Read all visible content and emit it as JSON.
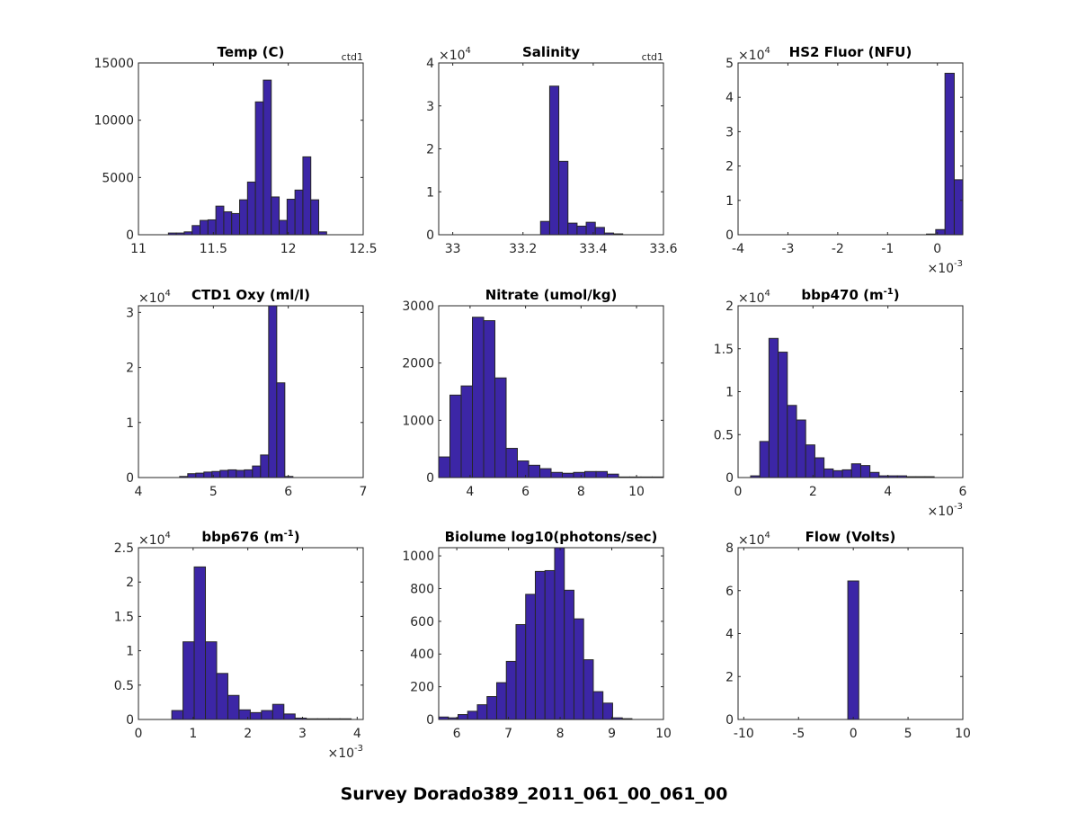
{
  "figure_title": "Survey Dorado389_2011_061_00_061_00",
  "colors": {
    "bar": "#3c26a6",
    "edge": "#262626",
    "axis": "#262626"
  },
  "chart_data": [
    {
      "type": "bar",
      "title": "Temp (C)",
      "corner_label": "ctd1",
      "xlim": [
        11,
        12.5
      ],
      "ylim": [
        0,
        15000
      ],
      "xticks": [
        11,
        11.5,
        12,
        12.5
      ],
      "xtick_labels": [
        "11",
        "11.5",
        "12",
        "12.5"
      ],
      "yticks": [
        0,
        5000,
        10000,
        15000
      ],
      "ytick_labels": [
        "0",
        "5000",
        "10000",
        "15000"
      ],
      "y_multiplier": "",
      "x_multiplier": "",
      "bin_start": 11.2,
      "bin_width": 0.0528,
      "values": [
        150,
        150,
        250,
        800,
        1250,
        1300,
        2500,
        2000,
        1850,
        3050,
        4600,
        11600,
        13500,
        3300,
        1250,
        3100,
        3900,
        6800,
        3050,
        250
      ]
    },
    {
      "type": "bar",
      "title": "Salinity",
      "corner_label": "ctd1",
      "xlim": [
        32.96,
        33.6
      ],
      "ylim": [
        0,
        4
      ],
      "xticks": [
        33,
        33.2,
        33.4,
        33.6
      ],
      "xtick_labels": [
        "33",
        "33.2",
        "33.4",
        "33.6"
      ],
      "yticks": [
        0,
        1,
        2,
        3,
        4
      ],
      "ytick_labels": [
        "0",
        "1",
        "2",
        "3",
        "4"
      ],
      "y_multiplier": "×10",
      "y_multiplier_exp": "4",
      "x_multiplier": "",
      "bin_start": 33.25,
      "bin_width": 0.026,
      "values": [
        0.31,
        3.46,
        1.71,
        0.27,
        0.2,
        0.29,
        0.17,
        0.04,
        0.02
      ]
    },
    {
      "type": "bar",
      "title": "HS2 Fluor (NFU)",
      "corner_label": "",
      "xlim": [
        -4,
        0.51
      ],
      "ylim": [
        0,
        5
      ],
      "xticks": [
        -4,
        -3,
        -2,
        -1,
        0
      ],
      "xtick_labels": [
        "-4",
        "-3",
        "-2",
        "-1",
        "0"
      ],
      "yticks": [
        0,
        1,
        2,
        3,
        4,
        5
      ],
      "ytick_labels": [
        "0",
        "1",
        "2",
        "3",
        "4",
        "5"
      ],
      "y_multiplier": "×10",
      "y_multiplier_exp": "4",
      "x_multiplier": "×10",
      "x_multiplier_exp": "-3",
      "bin_start": -0.22,
      "bin_width": 0.186,
      "values": [
        0.02,
        0.15,
        4.7,
        1.6
      ]
    },
    {
      "type": "bar",
      "title": "CTD1 Oxy (ml/l)",
      "corner_label": "",
      "xlim": [
        4,
        7
      ],
      "ylim": [
        0,
        3.12
      ],
      "xticks": [
        4,
        5,
        6,
        7
      ],
      "xtick_labels": [
        "4",
        "5",
        "6",
        "7"
      ],
      "yticks": [
        0,
        1,
        2,
        3
      ],
      "ytick_labels": [
        "0",
        "1",
        "2",
        "3"
      ],
      "y_multiplier": "×10",
      "y_multiplier_exp": "4",
      "x_multiplier": "",
      "bin_start": 4.55,
      "bin_width": 0.108,
      "values": [
        0.02,
        0.07,
        0.08,
        0.1,
        0.11,
        0.13,
        0.14,
        0.13,
        0.14,
        0.21,
        0.41,
        3.12,
        1.72,
        0.02
      ]
    },
    {
      "type": "bar",
      "title": "Nitrate (umol/kg)",
      "corner_label": "",
      "xlim": [
        2.87,
        10.97
      ],
      "ylim": [
        0,
        3000
      ],
      "xticks": [
        4,
        6,
        8,
        10
      ],
      "xtick_labels": [
        "4",
        "6",
        "8",
        "10"
      ],
      "yticks": [
        0,
        1000,
        2000,
        3000
      ],
      "ytick_labels": [
        "0",
        "1000",
        "2000",
        "3000"
      ],
      "y_multiplier": "",
      "x_multiplier": "",
      "bin_start": 2.87,
      "bin_width": 0.405,
      "values": [
        360,
        1440,
        1600,
        2800,
        2740,
        1740,
        510,
        290,
        215,
        155,
        90,
        75,
        90,
        105,
        105,
        60,
        10,
        10,
        10,
        10
      ]
    },
    {
      "type": "bar",
      "title": "bbp470 (m",
      "title_sup": "-1",
      "title_end": ")",
      "corner_label": "",
      "xlim": [
        0,
        6
      ],
      "ylim": [
        0,
        2
      ],
      "xticks": [
        0,
        2,
        4,
        6
      ],
      "xtick_labels": [
        "0",
        "2",
        "4",
        "6"
      ],
      "yticks": [
        0,
        0.5,
        1,
        1.5,
        2
      ],
      "ytick_labels": [
        "0",
        "0.5",
        "1",
        "1.5",
        "2"
      ],
      "y_multiplier": "×10",
      "y_multiplier_exp": "4",
      "x_multiplier": "×10",
      "x_multiplier_exp": "-3",
      "bin_start": 0.335,
      "bin_width": 0.245,
      "values": [
        0.02,
        0.42,
        1.62,
        1.46,
        0.84,
        0.67,
        0.38,
        0.23,
        0.1,
        0.08,
        0.09,
        0.16,
        0.14,
        0.06,
        0.02,
        0.02,
        0.02,
        0.01,
        0.01,
        0.01
      ]
    },
    {
      "type": "bar",
      "title": "bbp676 (m",
      "title_sup": "-1",
      "title_end": ")",
      "corner_label": "",
      "xlim": [
        0,
        4.11
      ],
      "ylim": [
        0,
        2.5
      ],
      "xticks": [
        0,
        1,
        2,
        3,
        4
      ],
      "xtick_labels": [
        "0",
        "1",
        "2",
        "3",
        "4"
      ],
      "yticks": [
        0,
        0.5,
        1,
        1.5,
        2,
        2.5
      ],
      "ytick_labels": [
        "0",
        "0.5",
        "1",
        "1.5",
        "2",
        "2.5"
      ],
      "y_multiplier": "×10",
      "y_multiplier_exp": "4",
      "x_multiplier": "×10",
      "x_multiplier_exp": "-3",
      "bin_start": 0.61,
      "bin_width": 0.205,
      "values": [
        0.13,
        1.13,
        2.22,
        1.13,
        0.67,
        0.35,
        0.14,
        0.1,
        0.13,
        0.22,
        0.08,
        0.02,
        0.01,
        0.01,
        0.01,
        0.01
      ]
    },
    {
      "type": "bar",
      "title": "Biolume log10(photons/sec)",
      "corner_label": "",
      "xlim": [
        5.65,
        10
      ],
      "ylim": [
        0,
        1050
      ],
      "xticks": [
        6,
        7,
        8,
        9,
        10
      ],
      "xtick_labels": [
        "6",
        "7",
        "8",
        "9",
        "10"
      ],
      "yticks": [
        0,
        200,
        400,
        600,
        800,
        1000
      ],
      "ytick_labels": [
        "0",
        "200",
        "400",
        "600",
        "800",
        "1000"
      ],
      "y_multiplier": "",
      "x_multiplier": "",
      "bin_start": 5.65,
      "bin_width": 0.187,
      "values": [
        15,
        10,
        30,
        50,
        90,
        140,
        225,
        355,
        580,
        765,
        905,
        910,
        1055,
        790,
        615,
        365,
        170,
        100,
        10,
        5
      ]
    },
    {
      "type": "bar",
      "title": "Flow (Volts)",
      "corner_label": "",
      "xlim": [
        -10.52,
        10
      ],
      "ylim": [
        0,
        8
      ],
      "xticks": [
        -10,
        -5,
        0,
        5,
        10
      ],
      "xtick_labels": [
        "-10",
        "-5",
        "0",
        "5",
        "10"
      ],
      "yticks": [
        0,
        2,
        4,
        6,
        8
      ],
      "ytick_labels": [
        "0",
        "2",
        "4",
        "6",
        "8"
      ],
      "y_multiplier": "×10",
      "y_multiplier_exp": "4",
      "x_multiplier": "",
      "bin_start": -0.5,
      "bin_width": 1.0,
      "values": [
        6.45
      ]
    }
  ]
}
